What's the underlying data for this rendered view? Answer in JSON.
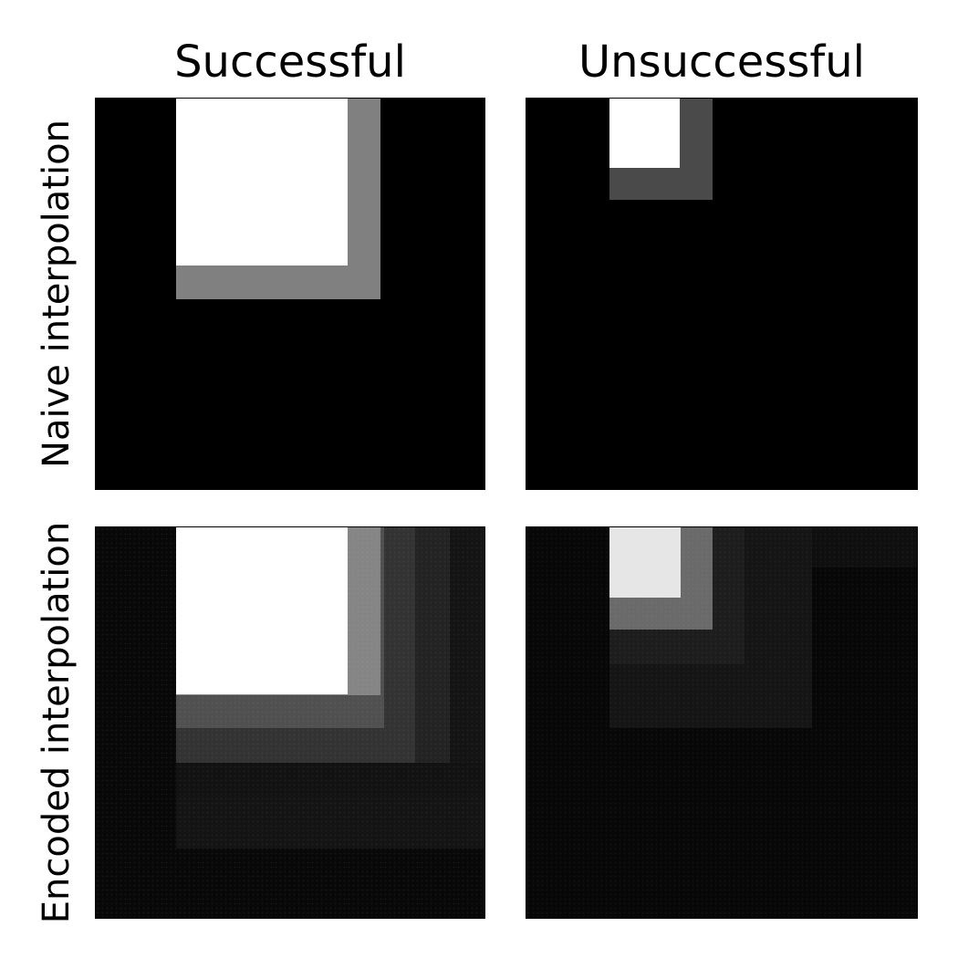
{
  "columns": [
    "Successful",
    "Unsuccessful"
  ],
  "rows": [
    "Naive interpolation",
    "Encoded interpolation"
  ],
  "colors": {
    "background": "#ffffff",
    "panel": "#000000"
  }
}
